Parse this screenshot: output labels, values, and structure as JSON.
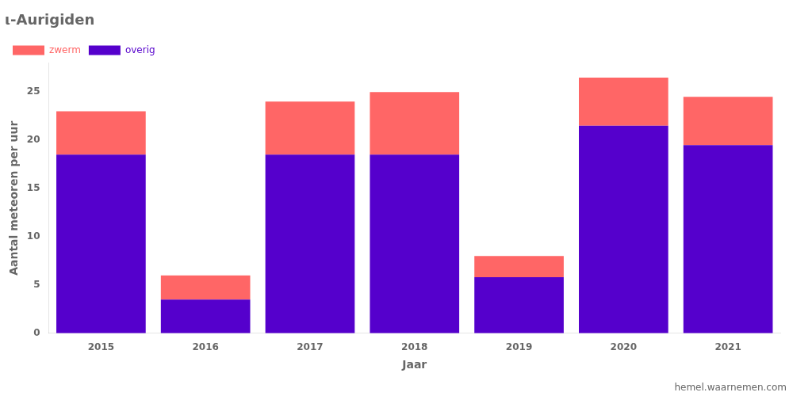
{
  "chart_data": {
    "type": "bar",
    "title": "ι-Aurigiden",
    "x_label": "Jaar",
    "y_label": "Aantal meteoren per uur",
    "categories": [
      "2015",
      "2016",
      "2017",
      "2018",
      "2019",
      "2020",
      "2021"
    ],
    "series": [
      {
        "name": "overig",
        "color": "#5500CC",
        "values": [
          18.5,
          3.5,
          18.5,
          18.5,
          5.8,
          21.5,
          19.5
        ]
      },
      {
        "name": "zwerm",
        "color": "#FF6666",
        "values": [
          4.5,
          2.5,
          5.5,
          6.5,
          2.2,
          5.0,
          5.0
        ]
      }
    ],
    "stacked": true,
    "ylim": [
      0,
      28
    ],
    "yticks": [
      0,
      5,
      10,
      15,
      20,
      25
    ],
    "grid": false,
    "legend": "upper left",
    "annotations": [
      "hemel.waarnemen.com"
    ]
  }
}
